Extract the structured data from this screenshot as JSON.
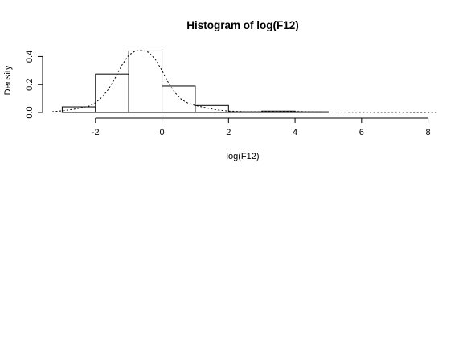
{
  "chart_data": {
    "type": "histogram",
    "title": "Histogram of log(F12)",
    "xlabel": "log(F12)",
    "ylabel": "Density",
    "xlim": [
      -3.3,
      8.3
    ],
    "ylim": [
      0,
      0.46
    ],
    "x_ticks": [
      -2,
      0,
      2,
      4,
      6,
      8
    ],
    "x_tick_labels": [
      "-2",
      "0",
      "2",
      "4",
      "6",
      "8"
    ],
    "y_ticks": [
      0.0,
      0.2,
      0.4
    ],
    "y_tick_labels": [
      "0.0",
      "0.2",
      "0.4"
    ],
    "bins": [
      {
        "from": -3,
        "to": -2,
        "density": 0.04
      },
      {
        "from": -2,
        "to": -1,
        "density": 0.275
      },
      {
        "from": -1,
        "to": 0,
        "density": 0.44
      },
      {
        "from": 0,
        "to": 1,
        "density": 0.19
      },
      {
        "from": 1,
        "to": 2,
        "density": 0.05
      },
      {
        "from": 2,
        "to": 3,
        "density": 0.005
      },
      {
        "from": 3,
        "to": 4,
        "density": 0.01
      },
      {
        "from": 4,
        "to": 5,
        "density": 0.005
      },
      {
        "from": 5,
        "to": 6,
        "density": 0.0
      },
      {
        "from": 6,
        "to": 7,
        "density": 0.0
      },
      {
        "from": 7,
        "to": 8,
        "density": 0.0
      }
    ],
    "density_curve": {
      "style": "dotted",
      "x": [
        -3.3,
        -3.0,
        -2.6,
        -2.2,
        -2.0,
        -1.8,
        -1.6,
        -1.4,
        -1.2,
        -1.0,
        -0.8,
        -0.6,
        -0.4,
        -0.2,
        0.0,
        0.2,
        0.4,
        0.6,
        0.8,
        1.0,
        1.3,
        1.6,
        2.0,
        2.5,
        3.0,
        3.5,
        4.0,
        4.5,
        5.0,
        6.0,
        7.0,
        8.0,
        8.3
      ],
      "y": [
        0.005,
        0.012,
        0.025,
        0.045,
        0.07,
        0.11,
        0.17,
        0.25,
        0.34,
        0.41,
        0.44,
        0.445,
        0.43,
        0.38,
        0.3,
        0.21,
        0.14,
        0.09,
        0.065,
        0.05,
        0.035,
        0.02,
        0.01,
        0.006,
        0.006,
        0.008,
        0.008,
        0.005,
        0.003,
        0.001,
        0.0005,
        0.0002,
        0.0001
      ]
    }
  }
}
